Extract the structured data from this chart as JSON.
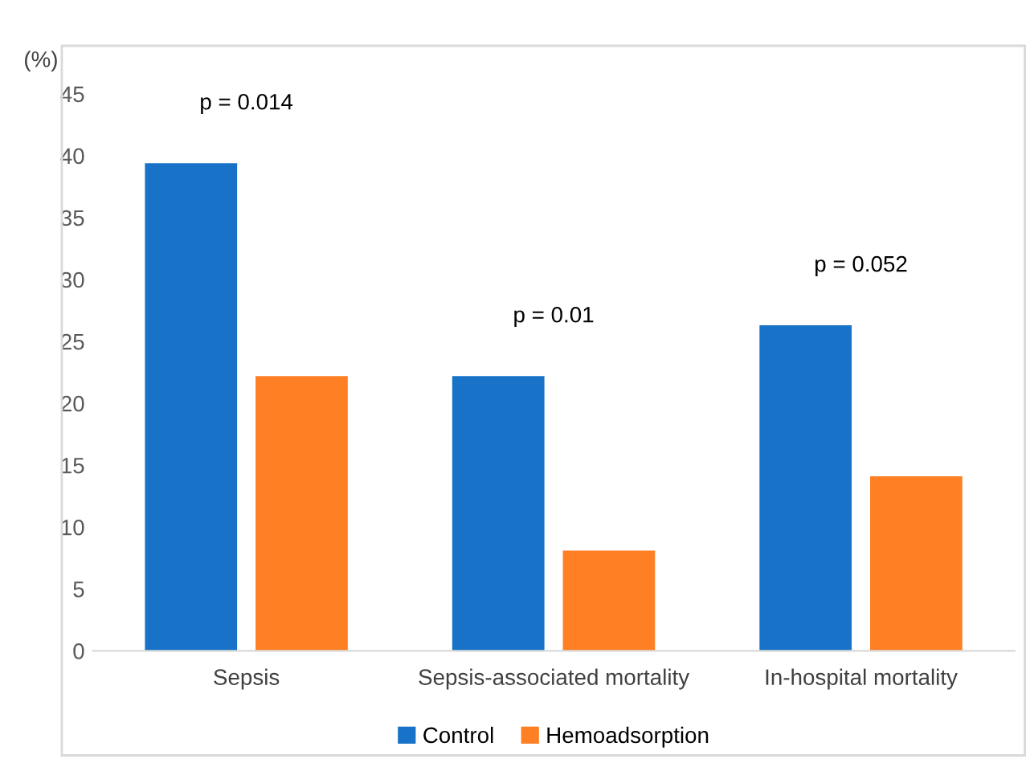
{
  "chart_data": {
    "type": "bar",
    "ylabel": "(%)",
    "categories": [
      "Sepsis",
      "Sepsis-associated mortality",
      "In-hospital mortality"
    ],
    "series": [
      {
        "name": "Control",
        "color": "#1772c8",
        "values": [
          39.4,
          22.2,
          26.3
        ]
      },
      {
        "name": "Hemoadsorption",
        "color": "#fe7f24",
        "values": [
          22.2,
          8.1,
          14.1
        ]
      }
    ],
    "ylim": [
      0,
      45
    ],
    "yticks": [
      0,
      5,
      10,
      15,
      20,
      25,
      30,
      35,
      40,
      45
    ],
    "grid": false,
    "legend": "bottom",
    "annotations": [
      "p = 0.014",
      "p = 0.01",
      "p = 0.052"
    ]
  }
}
